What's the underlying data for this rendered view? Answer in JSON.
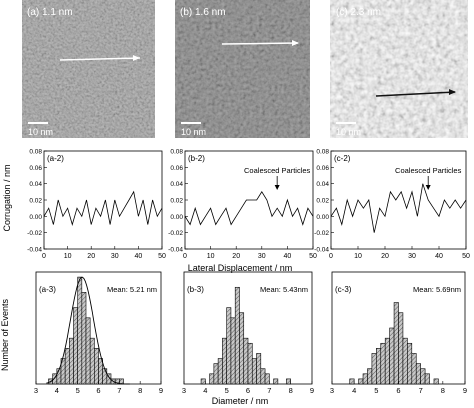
{
  "stm_panels": [
    {
      "label": "(a) 1.1 nm",
      "scale_bar": "10 nm",
      "arrow_color": "#ffffff"
    },
    {
      "label": "(b) 1.6 nm",
      "scale_bar": "10 nm",
      "arrow_color": "#ffffff"
    },
    {
      "label": "(c) 2.3 nm",
      "scale_bar": "10 nm",
      "arrow_color": "#111111"
    }
  ],
  "chart_data": [
    {
      "type": "line",
      "panel_label": "(a-2)",
      "ylabel": "Corrugation / nm",
      "xlabel": "",
      "xlim": [
        0,
        50
      ],
      "ylim": [
        -0.04,
        0.08
      ],
      "xticks": [
        0,
        10,
        20,
        30,
        40,
        50
      ],
      "yticks": [
        -0.04,
        -0.02,
        0.0,
        0.02,
        0.04,
        0.06,
        0.08
      ],
      "annotation": "",
      "x": [
        0,
        2,
        4,
        6,
        8,
        10,
        12,
        14,
        16,
        18,
        20,
        22,
        24,
        26,
        28,
        30,
        32,
        34,
        36,
        38,
        40,
        42,
        44,
        46,
        48,
        50
      ],
      "y": [
        0.0,
        0.01,
        -0.01,
        0.02,
        0.0,
        0.01,
        -0.01,
        0.01,
        0.0,
        0.02,
        -0.01,
        0.01,
        0.0,
        0.02,
        -0.01,
        0.02,
        0.0,
        0.01,
        0.02,
        0.03,
        0.0,
        0.02,
        -0.01,
        0.02,
        0.0,
        0.01
      ]
    },
    {
      "type": "line",
      "panel_label": "(b-2)",
      "xlabel": "Lateral Displacement / nm",
      "xlim": [
        0,
        50
      ],
      "ylim": [
        -0.04,
        0.08
      ],
      "xticks": [
        0,
        10,
        20,
        30,
        40,
        50
      ],
      "yticks": [
        -0.04,
        -0.02,
        0.0,
        0.02,
        0.04,
        0.06,
        0.08
      ],
      "annotation": "Coalesced Particles",
      "x": [
        0,
        2,
        4,
        6,
        8,
        10,
        12,
        14,
        16,
        18,
        20,
        22,
        24,
        26,
        28,
        30,
        32,
        34,
        36,
        38,
        40,
        42,
        44,
        46,
        48,
        50
      ],
      "y": [
        0.0,
        -0.01,
        0.01,
        -0.01,
        0.0,
        0.01,
        -0.01,
        0.0,
        0.01,
        -0.01,
        0.0,
        0.01,
        0.02,
        0.02,
        0.02,
        0.03,
        0.02,
        0.0,
        0.01,
        0.0,
        0.02,
        0.0,
        0.01,
        -0.01,
        0.01,
        0.0
      ]
    },
    {
      "type": "line",
      "panel_label": "(c-2)",
      "xlabel": "",
      "xlim": [
        0,
        50
      ],
      "ylim": [
        -0.04,
        0.08
      ],
      "xticks": [
        0,
        10,
        20,
        30,
        40,
        50
      ],
      "yticks": [
        -0.04,
        -0.02,
        0.0,
        0.02,
        0.04,
        0.06,
        0.08
      ],
      "annotation": "Coalesced Particles",
      "x": [
        0,
        2,
        4,
        6,
        8,
        10,
        12,
        14,
        16,
        18,
        20,
        22,
        24,
        26,
        28,
        30,
        32,
        34,
        36,
        38,
        40,
        42,
        44,
        46,
        48,
        50
      ],
      "y": [
        0.0,
        0.01,
        -0.01,
        0.02,
        0.0,
        0.02,
        0.01,
        0.02,
        -0.02,
        0.01,
        0.0,
        0.03,
        0.02,
        0.03,
        0.01,
        0.03,
        0.0,
        0.04,
        0.02,
        0.01,
        0.0,
        0.02,
        0.01,
        0.02,
        0.01,
        0.02
      ]
    },
    {
      "type": "bar",
      "panel_label": "(a-3)",
      "annotation": "Mean: 5.21 nm",
      "ylabel": "Number of Events",
      "xlabel": "",
      "xlim": [
        3,
        9
      ],
      "ylim": [
        0,
        22
      ],
      "xticks": [
        3,
        4,
        5,
        6,
        7,
        8,
        9
      ],
      "bin_width": 0.2,
      "bin_starts": [
        3.6,
        3.8,
        4.0,
        4.2,
        4.4,
        4.6,
        4.8,
        5.0,
        5.2,
        5.4,
        5.6,
        5.8,
        6.0,
        6.2,
        6.4,
        6.6,
        6.8,
        7.0
      ],
      "values": [
        1,
        2,
        3,
        5,
        7,
        9,
        15,
        21,
        18,
        13,
        9,
        7,
        5,
        3,
        2,
        1,
        1,
        1
      ],
      "fit_curve": true
    },
    {
      "type": "bar",
      "panel_label": "(b-3)",
      "annotation": "Mean: 5.43nm",
      "xlabel": "Diameter / nm",
      "xlim": [
        3,
        9
      ],
      "ylim": [
        0,
        22
      ],
      "xticks": [
        3,
        4,
        5,
        6,
        7,
        8,
        9
      ],
      "bin_width": 0.2,
      "bin_starts": [
        3.8,
        4.2,
        4.4,
        4.6,
        4.8,
        5.0,
        5.2,
        5.4,
        5.6,
        5.8,
        6.0,
        6.2,
        6.4,
        6.6,
        6.8,
        7.2,
        7.8
      ],
      "values": [
        1,
        2,
        4,
        5,
        9,
        15,
        13,
        19,
        14,
        9,
        8,
        5,
        6,
        3,
        2,
        1,
        1
      ],
      "fit_curve": false
    },
    {
      "type": "bar",
      "panel_label": "(c-3)",
      "annotation": "Mean: 5.69nm",
      "xlabel": "",
      "xlim": [
        3,
        9
      ],
      "ylim": [
        0,
        22
      ],
      "xticks": [
        3,
        4,
        5,
        6,
        7,
        8,
        9
      ],
      "bin_width": 0.2,
      "bin_starts": [
        3.8,
        4.2,
        4.4,
        4.6,
        4.8,
        5.0,
        5.2,
        5.4,
        5.6,
        5.8,
        6.0,
        6.2,
        6.4,
        6.6,
        6.8,
        7.0,
        7.2,
        7.6
      ],
      "values": [
        1,
        1,
        2,
        3,
        6,
        7,
        8,
        9,
        11,
        16,
        14,
        9,
        8,
        6,
        4,
        3,
        2,
        1
      ],
      "fit_curve": false
    }
  ]
}
